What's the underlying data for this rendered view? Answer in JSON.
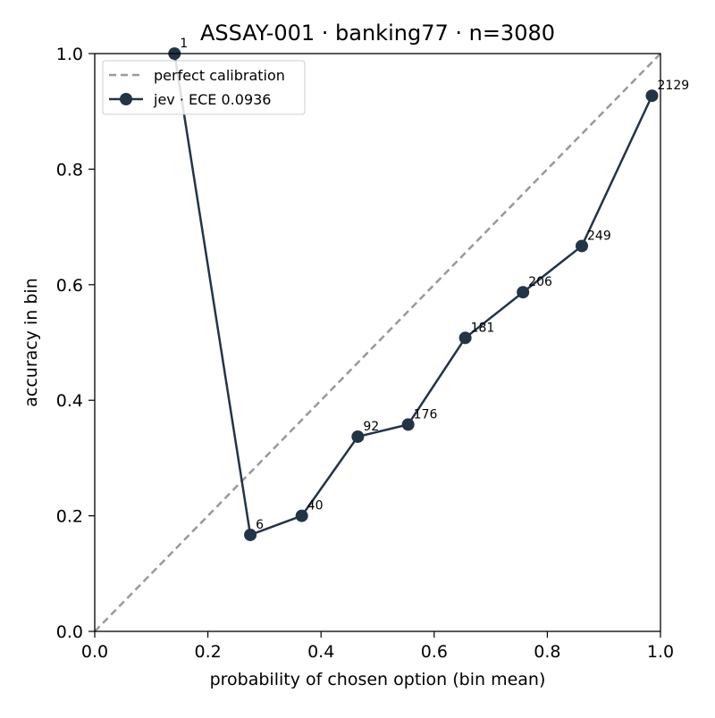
{
  "chart_data": {
    "type": "line",
    "title": "ASSAY-001 · banking77 · n=3080",
    "xlabel": "probability of chosen option (bin mean)",
    "ylabel": "accuracy in bin",
    "xlim": [
      0.0,
      1.0
    ],
    "ylim": [
      0.0,
      1.0
    ],
    "x_ticks": [
      "0.0",
      "0.2",
      "0.4",
      "0.6",
      "0.8",
      "1.0"
    ],
    "y_ticks": [
      "0.0",
      "0.2",
      "0.4",
      "0.6",
      "0.8",
      "1.0"
    ],
    "grid": false,
    "legend_position": "upper-left",
    "reference_line": {
      "name": "perfect calibration",
      "style": "dashed",
      "color": "#999999",
      "points": [
        [
          0.0,
          0.0
        ],
        [
          1.0,
          1.0
        ]
      ]
    },
    "series": [
      {
        "name": "jev · ECE 0.0936",
        "color": "#243447",
        "marker": "circle",
        "points": [
          {
            "x": 0.141,
            "y": 1.0,
            "label": "1"
          },
          {
            "x": 0.275,
            "y": 0.167,
            "label": "6"
          },
          {
            "x": 0.366,
            "y": 0.2,
            "label": "40"
          },
          {
            "x": 0.465,
            "y": 0.337,
            "label": "92"
          },
          {
            "x": 0.554,
            "y": 0.358,
            "label": "176"
          },
          {
            "x": 0.655,
            "y": 0.508,
            "label": "181"
          },
          {
            "x": 0.757,
            "y": 0.587,
            "label": "206"
          },
          {
            "x": 0.861,
            "y": 0.667,
            "label": "249"
          },
          {
            "x": 0.985,
            "y": 0.927,
            "label": "2129"
          }
        ]
      }
    ]
  }
}
